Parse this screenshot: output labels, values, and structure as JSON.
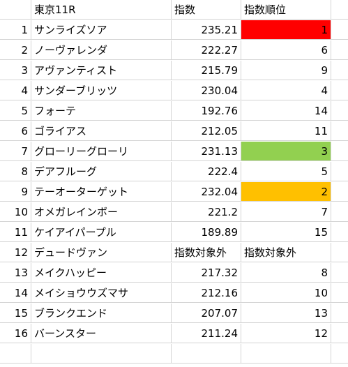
{
  "header": {
    "race": "東京11R",
    "score": "指数",
    "rank": "指数順位"
  },
  "rows": [
    {
      "no": "1",
      "horse": "サンライズソア",
      "score": "235.21",
      "rank": "1",
      "highlight": "#ff0000"
    },
    {
      "no": "2",
      "horse": "ノーヴァレンダ",
      "score": "222.27",
      "rank": "6",
      "highlight": ""
    },
    {
      "no": "3",
      "horse": "アヴァンティスト",
      "score": "215.79",
      "rank": "9",
      "highlight": ""
    },
    {
      "no": "4",
      "horse": "サンダーブリッツ",
      "score": "230.04",
      "rank": "4",
      "highlight": ""
    },
    {
      "no": "5",
      "horse": "フォーテ",
      "score": "192.76",
      "rank": "14",
      "highlight": ""
    },
    {
      "no": "6",
      "horse": "ゴライアス",
      "score": "212.05",
      "rank": "11",
      "highlight": ""
    },
    {
      "no": "7",
      "horse": "グローリーグローリ",
      "score": "231.13",
      "rank": "3",
      "highlight": "#92d050"
    },
    {
      "no": "8",
      "horse": "デアフルーグ",
      "score": "222.4",
      "rank": "5",
      "highlight": ""
    },
    {
      "no": "9",
      "horse": "テーオーターゲット",
      "score": "232.04",
      "rank": "2",
      "highlight": "#ffc000"
    },
    {
      "no": "10",
      "horse": "オメガレインボー",
      "score": "221.2",
      "rank": "7",
      "highlight": ""
    },
    {
      "no": "11",
      "horse": "ケイアイパープル",
      "score": "189.89",
      "rank": "15",
      "highlight": ""
    },
    {
      "no": "12",
      "horse": "デュードヴァン",
      "score": "指数対象外",
      "rank": "指数対象外",
      "highlight": "",
      "excluded": true
    },
    {
      "no": "13",
      "horse": "メイクハッピー",
      "score": "217.32",
      "rank": "8",
      "highlight": ""
    },
    {
      "no": "14",
      "horse": "メイショウウズマサ",
      "score": "212.16",
      "rank": "10",
      "highlight": ""
    },
    {
      "no": "15",
      "horse": "ブランクエンド",
      "score": "207.07",
      "rank": "13",
      "highlight": ""
    },
    {
      "no": "16",
      "horse": "バーンスター",
      "score": "211.24",
      "rank": "12",
      "highlight": ""
    }
  ]
}
